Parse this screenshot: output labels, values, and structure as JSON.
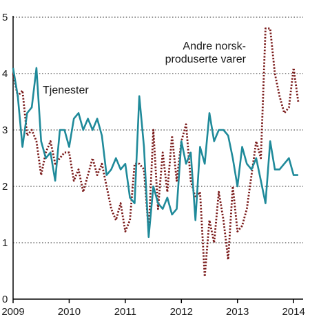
{
  "chart_data": {
    "type": "line",
    "title": "",
    "xlabel": "",
    "ylabel": "",
    "ylim": [
      0,
      5
    ],
    "yticks": [
      0,
      1,
      2,
      3,
      4,
      5
    ],
    "xlim": [
      2009.0,
      2014.17
    ],
    "xticks": [
      2009,
      2010,
      2011,
      2012,
      2013,
      2014
    ],
    "xtick_labels": [
      "2009",
      "2010",
      "2011",
      "2012",
      "2013",
      "2014"
    ],
    "grid": "horizontal dotted",
    "series": [
      {
        "name": "Tjenester",
        "label_lines": [
          "Tjenester"
        ],
        "color": "#1f8a9a",
        "style": "solid",
        "values": [
          4.1,
          3.6,
          2.7,
          3.3,
          3.4,
          4.1,
          2.8,
          2.5,
          2.6,
          2.1,
          3.0,
          3.0,
          2.7,
          3.2,
          3.3,
          3.0,
          3.2,
          3.0,
          3.2,
          2.9,
          2.2,
          2.3,
          2.5,
          2.3,
          2.4,
          1.8,
          1.7,
          3.6,
          2.7,
          1.1,
          2.0,
          1.7,
          1.6,
          1.8,
          1.5,
          1.6,
          2.8,
          2.4,
          2.6,
          1.4,
          2.7,
          2.4,
          3.3,
          2.8,
          3.0,
          3.0,
          2.9,
          2.5,
          2.0,
          2.7,
          2.4,
          2.3,
          2.5,
          2.1,
          1.7,
          2.8,
          2.3,
          2.3,
          2.4,
          2.5,
          2.2,
          2.2
        ]
      },
      {
        "name": "Andre norsk-produserte varer",
        "label_lines": [
          "Andre norsk-",
          "produserte varer"
        ],
        "color": "#7a1a1a",
        "style": "dotted",
        "values": [
          4.0,
          3.6,
          3.7,
          2.9,
          3.0,
          2.8,
          2.2,
          2.6,
          2.8,
          2.4,
          2.5,
          2.6,
          2.6,
          2.1,
          2.3,
          1.9,
          2.2,
          2.5,
          2.2,
          2.4,
          2.0,
          1.6,
          1.4,
          1.7,
          1.2,
          1.4,
          2.4,
          2.4,
          2.3,
          1.2,
          3.0,
          1.6,
          2.6,
          1.9,
          2.9,
          2.1,
          2.8,
          3.1,
          2.1,
          1.8,
          1.9,
          0.4,
          1.4,
          1.0,
          1.9,
          1.4,
          0.7,
          2.0,
          1.2,
          1.3,
          1.6,
          2.2,
          2.8,
          2.5,
          4.8,
          4.8,
          4.0,
          3.6,
          3.3,
          3.4,
          4.1,
          3.5
        ]
      }
    ]
  }
}
